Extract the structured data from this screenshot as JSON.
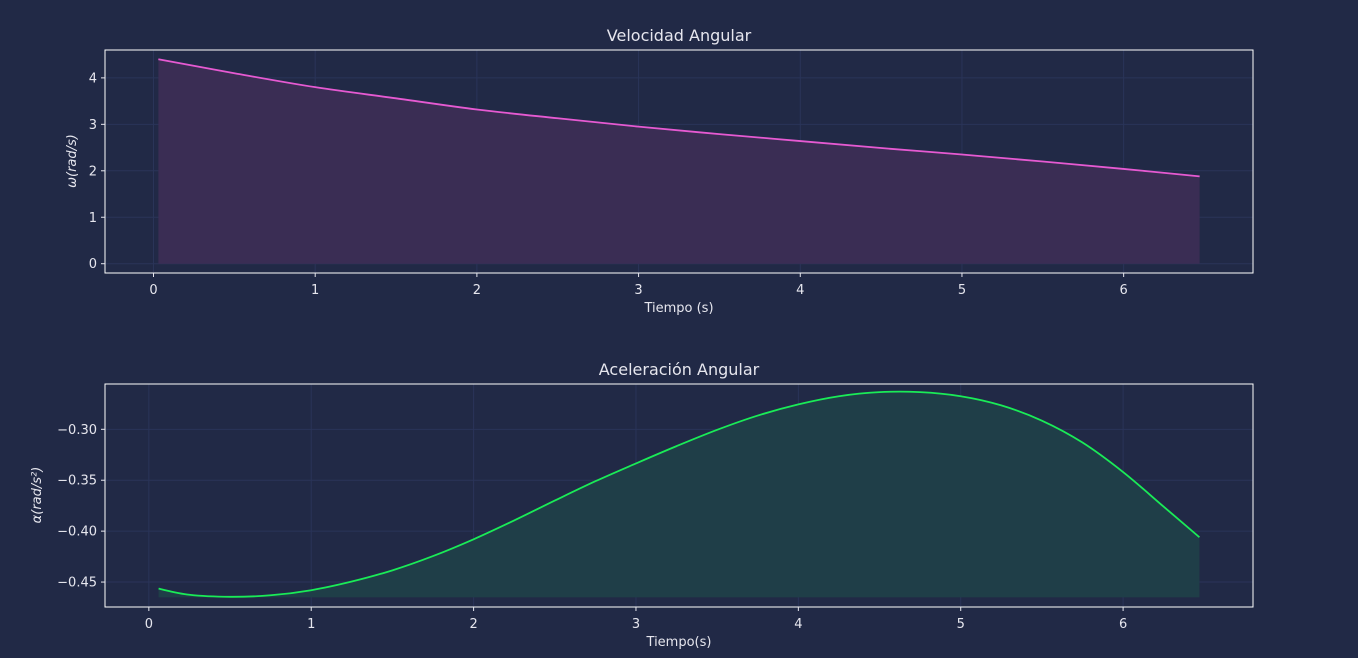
{
  "colors": {
    "background": "#212946",
    "grid": "#2a3459",
    "text": "#e6e6ee",
    "velocity_line": "#e65ad2",
    "velocity_fill": "#3a2d54",
    "acceleration_line": "#1aeb57",
    "acceleration_fill": "#1f3e48"
  },
  "chart_data": [
    {
      "type": "area",
      "title": "Velocidad Angular",
      "xlabel": "Tiempo (s)",
      "ylabel": "ω(rad/s)",
      "xlim": [
        -0.3,
        6.8
      ],
      "ylim": [
        -0.2,
        4.6
      ],
      "xticks": [
        0,
        1,
        2,
        3,
        4,
        5,
        6
      ],
      "xtick_labels": [
        "0",
        "1",
        "2",
        "3",
        "4",
        "5",
        "6"
      ],
      "yticks": [
        0,
        1,
        2,
        3,
        4
      ],
      "ytick_labels": [
        "0",
        "1",
        "2",
        "3",
        "4"
      ],
      "grid": true,
      "fill_baseline": 0,
      "series": [
        {
          "x": [
            0.03,
            0.5,
            1.0,
            1.5,
            2.0,
            2.5,
            3.0,
            3.5,
            4.0,
            4.5,
            5.0,
            5.5,
            6.0,
            6.47
          ],
          "values": [
            4.4,
            4.1,
            3.8,
            3.56,
            3.32,
            3.13,
            2.95,
            2.79,
            2.64,
            2.49,
            2.35,
            2.2,
            2.04,
            1.88
          ]
        }
      ]
    },
    {
      "type": "area",
      "title": "Aceleración Angular",
      "xlabel": "Tiempo(s)",
      "ylabel": "α(rad/s²)",
      "xlim": [
        -0.27,
        6.8
      ],
      "ylim": [
        -0.4745,
        -0.2555
      ],
      "xticks": [
        0,
        1,
        2,
        3,
        4,
        5,
        6
      ],
      "xtick_labels": [
        "0",
        "1",
        "2",
        "3",
        "4",
        "5",
        "6"
      ],
      "yticks": [
        -0.3,
        -0.35,
        -0.4,
        -0.45
      ],
      "ytick_labels": [
        "−0.30",
        "−0.35",
        "−0.40",
        "−0.45"
      ],
      "grid": true,
      "fill_baseline": -0.465,
      "series": [
        {
          "x": [
            0.06,
            0.25,
            0.5,
            0.75,
            1.0,
            1.25,
            1.5,
            1.75,
            2.0,
            2.25,
            2.5,
            2.75,
            3.0,
            3.25,
            3.5,
            3.75,
            4.0,
            4.25,
            4.5,
            4.75,
            5.0,
            5.25,
            5.5,
            5.75,
            6.0,
            6.25,
            6.47
          ],
          "values": [
            -0.4565,
            -0.4625,
            -0.4645,
            -0.463,
            -0.458,
            -0.4495,
            -0.4385,
            -0.4245,
            -0.408,
            -0.3895,
            -0.37,
            -0.351,
            -0.3335,
            -0.3165,
            -0.3005,
            -0.2865,
            -0.2755,
            -0.2675,
            -0.2635,
            -0.2635,
            -0.2675,
            -0.2765,
            -0.2915,
            -0.313,
            -0.342,
            -0.376,
            -0.406
          ]
        }
      ]
    }
  ]
}
